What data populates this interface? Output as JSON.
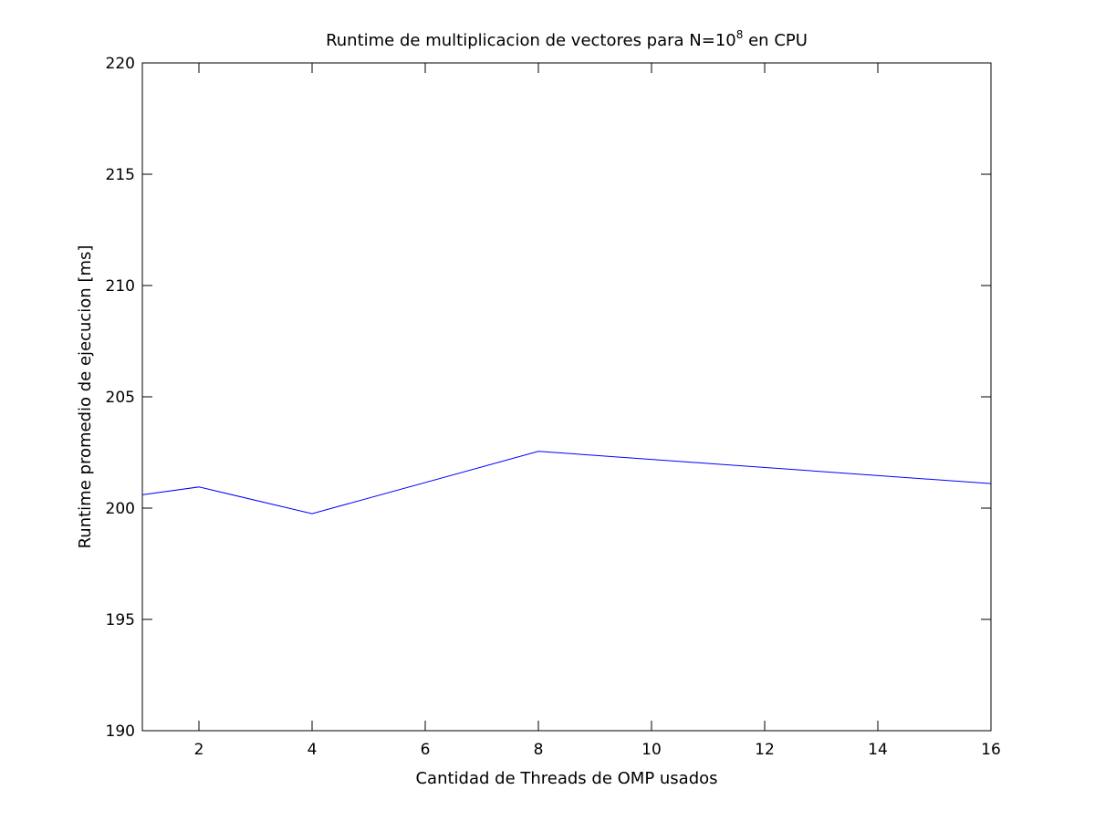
{
  "chart_data": {
    "type": "line",
    "title_main": "Runtime de multiplicacion de vectores para N=10",
    "title_exp": "8",
    "title_tail": " en CPU",
    "xlabel": "Cantidad de Threads de OMP usados",
    "ylabel": "Runtime promedio de ejecucion [ms]",
    "xlim": [
      1,
      16
    ],
    "ylim": [
      190,
      220
    ],
    "xticks": [
      2,
      4,
      6,
      8,
      10,
      12,
      14,
      16
    ],
    "yticks": [
      190,
      195,
      200,
      205,
      210,
      215,
      220
    ],
    "grid": false,
    "series": [
      {
        "color": "#0000ff",
        "x": [
          1,
          2,
          4,
          8,
          16
        ],
        "y": [
          200.6,
          200.95,
          199.75,
          202.55,
          201.1
        ]
      }
    ]
  }
}
